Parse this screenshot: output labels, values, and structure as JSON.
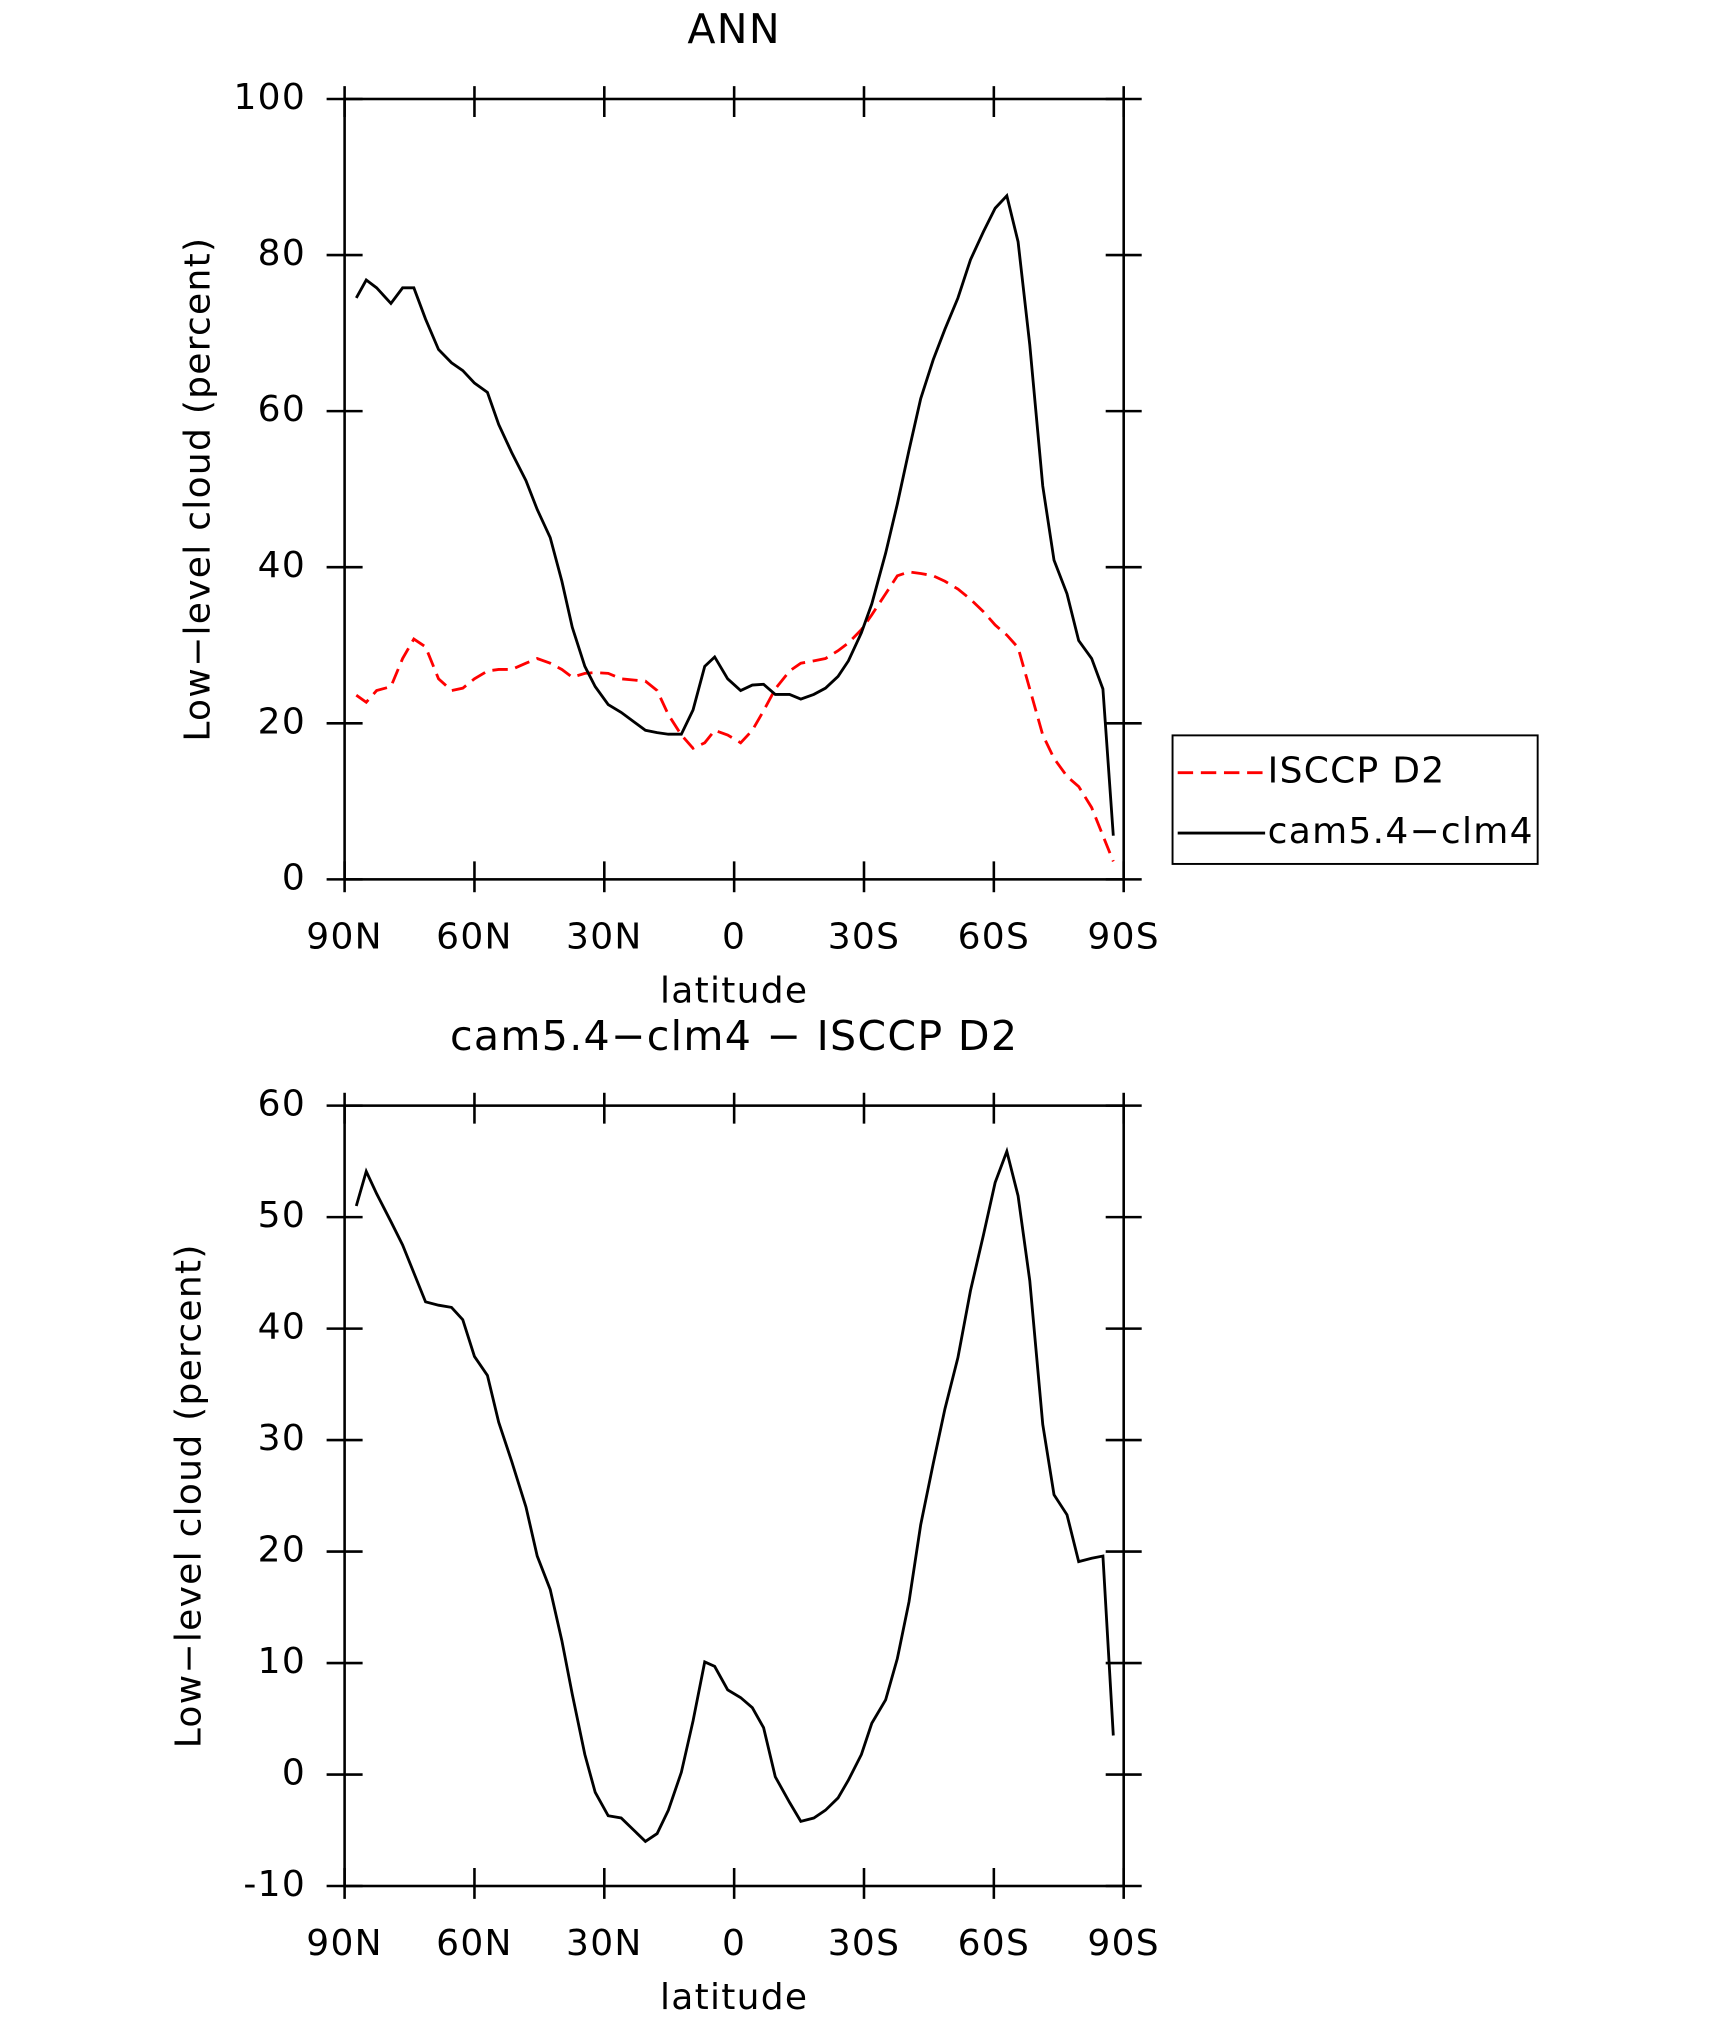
{
  "chart_data": [
    {
      "type": "line",
      "title": "ANN",
      "xlabel": "latitude",
      "ylabel": "Low−level cloud (percent)",
      "x": [
        87.3,
        85,
        82.6,
        79.3,
        76.6,
        74,
        71.3,
        68.3,
        65.3,
        62.7,
        60,
        57,
        54.4,
        51.4,
        48.1,
        45.5,
        42.5,
        39.8,
        37.4,
        34.5,
        32.1,
        29.1,
        26.1,
        20.5,
        17.8,
        15.2,
        12.2,
        9.5,
        6.8,
        4.5,
        1.5,
        -1.5,
        -4.2,
        -6.8,
        -9.5,
        -12.8,
        -15.4,
        -18.4,
        -21.1,
        -24,
        -26.4,
        -29.4,
        -31.8,
        -35,
        -37.7,
        -40.4,
        -43.1,
        -46,
        -48.7,
        -51.7,
        -54.6,
        -57.6,
        -60.3,
        -63,
        -65.6,
        -68.3,
        -71.3,
        -73.9,
        -76.9,
        -79.6,
        -82.6,
        -85.2,
        -87.6
      ],
      "series": [
        {
          "name": "ISCCP D2",
          "color": "#ff0000",
          "line_style": "dashed",
          "values": [
            23.6,
            22.7,
            24.2,
            24.7,
            28.3,
            30.8,
            29.8,
            25.7,
            24.2,
            24.5,
            25.7,
            26.7,
            26.9,
            26.9,
            27.7,
            28.3,
            27.7,
            26.9,
            25.9,
            26.4,
            26.5,
            26.4,
            25.7,
            25.4,
            24.2,
            21.1,
            18.5,
            16.8,
            17.5,
            19.1,
            18.5,
            17.5,
            19.1,
            21.6,
            24.4,
            26.7,
            27.7,
            28,
            28.3,
            29.3,
            30.3,
            32,
            33.9,
            36.6,
            38.9,
            39.4,
            39.2,
            38.9,
            38.2,
            37.2,
            35.9,
            34.3,
            32.6,
            31.3,
            29.7,
            24.4,
            18.5,
            15.5,
            13.2,
            11.9,
            9.2,
            5.6,
            2.3
          ]
        },
        {
          "name": "cam5.4−clm4",
          "color": "#000000",
          "line_style": "solid",
          "values": [
            74.5,
            76.8,
            75.8,
            73.8,
            75.8,
            75.8,
            71.8,
            67.9,
            66.2,
            65.2,
            63.6,
            62.4,
            58.3,
            54.7,
            51.1,
            47.4,
            43.8,
            38.2,
            32.3,
            27.3,
            24.7,
            22.4,
            21.4,
            19.1,
            18.8,
            18.6,
            18.6,
            21.7,
            27.3,
            28.5,
            25.7,
            24.2,
            24.9,
            25,
            23.7,
            23.7,
            23.1,
            23.7,
            24.5,
            26,
            28,
            31.6,
            35.3,
            41.8,
            48.1,
            55,
            61.6,
            66.6,
            70.5,
            74.5,
            79.4,
            83,
            86,
            87.6,
            81.7,
            68.5,
            50.4,
            40.9,
            36.6,
            30.6,
            28.3,
            24.4,
            5.6
          ]
        }
      ],
      "xlim": [
        90,
        -90
      ],
      "xticks": [
        {
          "value": 90,
          "label": "90N"
        },
        {
          "value": 60,
          "label": "60N"
        },
        {
          "value": 30,
          "label": "30N"
        },
        0,
        {
          "value": -30,
          "label": "30S"
        },
        {
          "value": -60,
          "label": "60S"
        },
        {
          "value": -90,
          "label": "90S"
        }
      ],
      "ylim": [
        0,
        100
      ],
      "yticks": [
        0,
        20,
        40,
        60,
        80,
        100
      ],
      "legend": "right"
    },
    {
      "type": "line",
      "title": "cam5.4−clm4 − ISCCP D2",
      "xlabel": "latitude",
      "ylabel": "Low−level cloud (percent)",
      "x": [
        87.3,
        85,
        82.6,
        79.3,
        76.6,
        74,
        71.3,
        68.3,
        65.3,
        62.7,
        60,
        57,
        54.4,
        51.4,
        48.1,
        45.5,
        42.5,
        39.8,
        37.4,
        34.5,
        32.1,
        29.1,
        26.1,
        20.5,
        17.8,
        15.2,
        12.2,
        9.5,
        6.8,
        4.5,
        1.5,
        -1.5,
        -4.2,
        -6.8,
        -9.5,
        -12.8,
        -15.4,
        -18.4,
        -21.1,
        -24,
        -26.4,
        -29.4,
        -31.8,
        -35,
        -37.7,
        -40.4,
        -43.1,
        -46,
        -48.7,
        -51.7,
        -54.6,
        -57.6,
        -60.3,
        -63,
        -65.6,
        -68.3,
        -71.3,
        -73.9,
        -76.9,
        -79.6,
        -82.6,
        -85.2,
        -87.6
      ],
      "values": [
        51,
        54.1,
        52.1,
        49.6,
        47.5,
        45,
        42.4,
        42.1,
        41.9,
        40.8,
        37.5,
        35.8,
        31.6,
        28.1,
        24,
        19.6,
        16.6,
        12,
        7.2,
        1.8,
        -1.6,
        -3.7,
        -3.9,
        -6,
        -5.3,
        -3.2,
        0.2,
        4.8,
        10.1,
        9.7,
        7.6,
        6.9,
        6,
        4.2,
        -0.2,
        -2.5,
        -4.2,
        -3.9,
        -3.2,
        -2.1,
        -0.5,
        1.8,
        4.6,
        6.7,
        10.4,
        15.5,
        22.4,
        27.9,
        32.8,
        37.4,
        43.4,
        48.4,
        53.1,
        55.9,
        51.9,
        44.3,
        31.4,
        25.1,
        23.3,
        19.1,
        19.4,
        19.6,
        3.5
      ],
      "color": "#000000",
      "xlim": [
        90,
        -90
      ],
      "xticks": [
        {
          "value": 90,
          "label": "90N"
        },
        {
          "value": 60,
          "label": "60N"
        },
        {
          "value": 30,
          "label": "30N"
        },
        0,
        {
          "value": -30,
          "label": "30S"
        },
        {
          "value": -60,
          "label": "60S"
        },
        {
          "value": -90,
          "label": "90S"
        }
      ],
      "ylim": [
        -10,
        60
      ],
      "yticks": [
        -10,
        0,
        10,
        20,
        30,
        40,
        50,
        60
      ]
    }
  ]
}
